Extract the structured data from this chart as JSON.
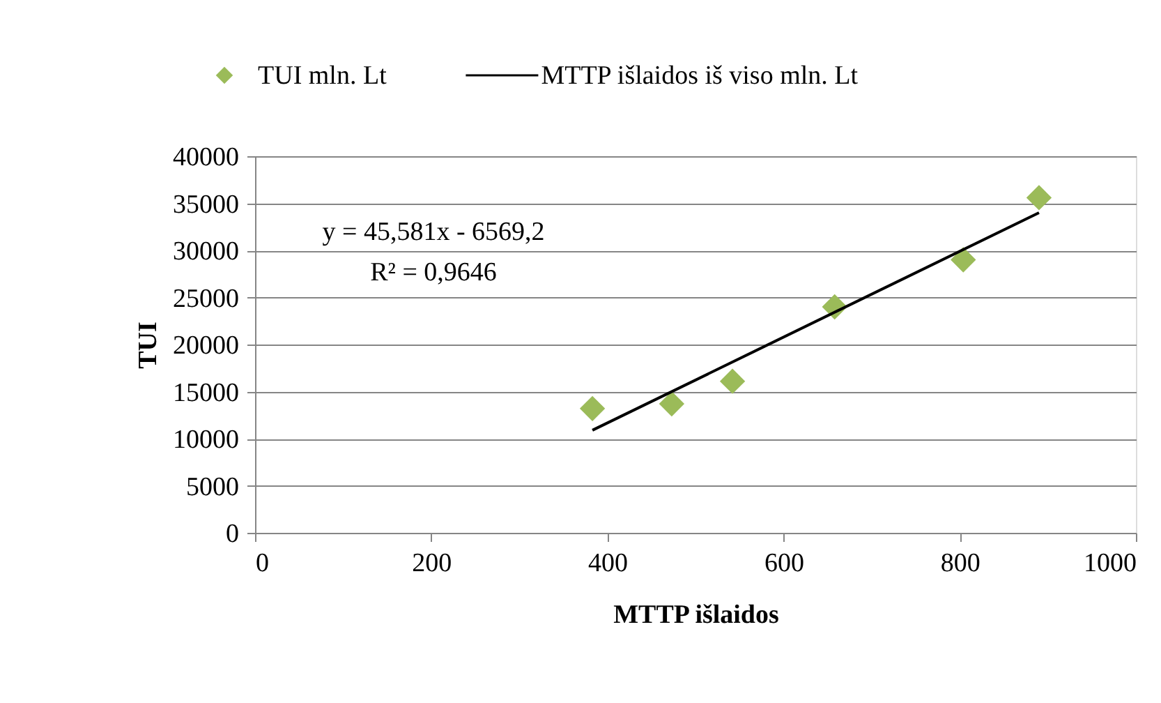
{
  "chart_data": {
    "type": "scatter",
    "xlabel": "MTTP išlaidos",
    "ylabel": "TUI",
    "x": [
      383,
      473,
      542,
      658,
      804,
      890
    ],
    "series": [
      {
        "name": "TUI mln. Lt",
        "color": "#9bbb59",
        "marker": "diamond",
        "values": [
          13200,
          13700,
          16100,
          24000,
          29000,
          35600
        ]
      },
      {
        "name": "MTTP išlaidos iš viso mln. Lt",
        "type": "line",
        "color": "#000000",
        "line_style": "solid",
        "x": [
          383,
          890
        ],
        "values": [
          10900,
          34000
        ]
      }
    ],
    "xlim": [
      0,
      1000
    ],
    "xticks": [
      0,
      200,
      400,
      600,
      800,
      1000
    ],
    "ylim": [
      0,
      40000
    ],
    "yticks": [
      0,
      5000,
      10000,
      15000,
      20000,
      25000,
      30000,
      35000,
      40000
    ],
    "grid": "y",
    "legend": "top",
    "annotations": [
      "y = 45,581x - 6569,2",
      "R² = 0,9646"
    ]
  }
}
